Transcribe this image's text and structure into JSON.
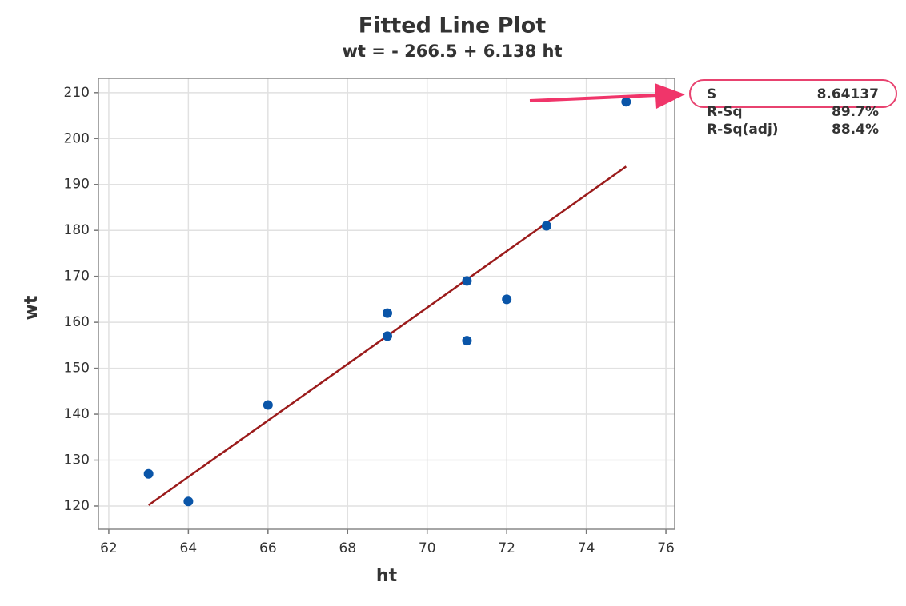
{
  "chart_data": {
    "type": "scatter",
    "title": "Fitted Line Plot",
    "subtitle": "wt = - 266.5 + 6.138 ht",
    "x_label": "ht",
    "y_label": "wt",
    "x": [
      63,
      64,
      66,
      69,
      69,
      71,
      71,
      72,
      73,
      75
    ],
    "values": [
      127,
      121,
      142,
      162,
      157,
      169,
      156,
      165,
      181,
      208
    ],
    "color": "#0a55a8",
    "fit_line": {
      "x": [
        63,
        75
      ],
      "values": [
        120.2,
        193.9
      ],
      "color": "#9b1b1b"
    },
    "xlim": [
      61.74,
      76.22
    ],
    "ylim": [
      114.95,
      213.1
    ],
    "xticks": [
      62,
      64,
      66,
      68,
      70,
      72,
      74,
      76
    ],
    "yticks": [
      120,
      130,
      140,
      150,
      160,
      170,
      180,
      190,
      200,
      210
    ],
    "grid": true,
    "stats": [
      {
        "label": "S",
        "value": "8.64137"
      },
      {
        "label": "R-Sq",
        "value": "89.7%"
      },
      {
        "label": "R-Sq(adj)",
        "value": "88.4%"
      }
    ]
  }
}
